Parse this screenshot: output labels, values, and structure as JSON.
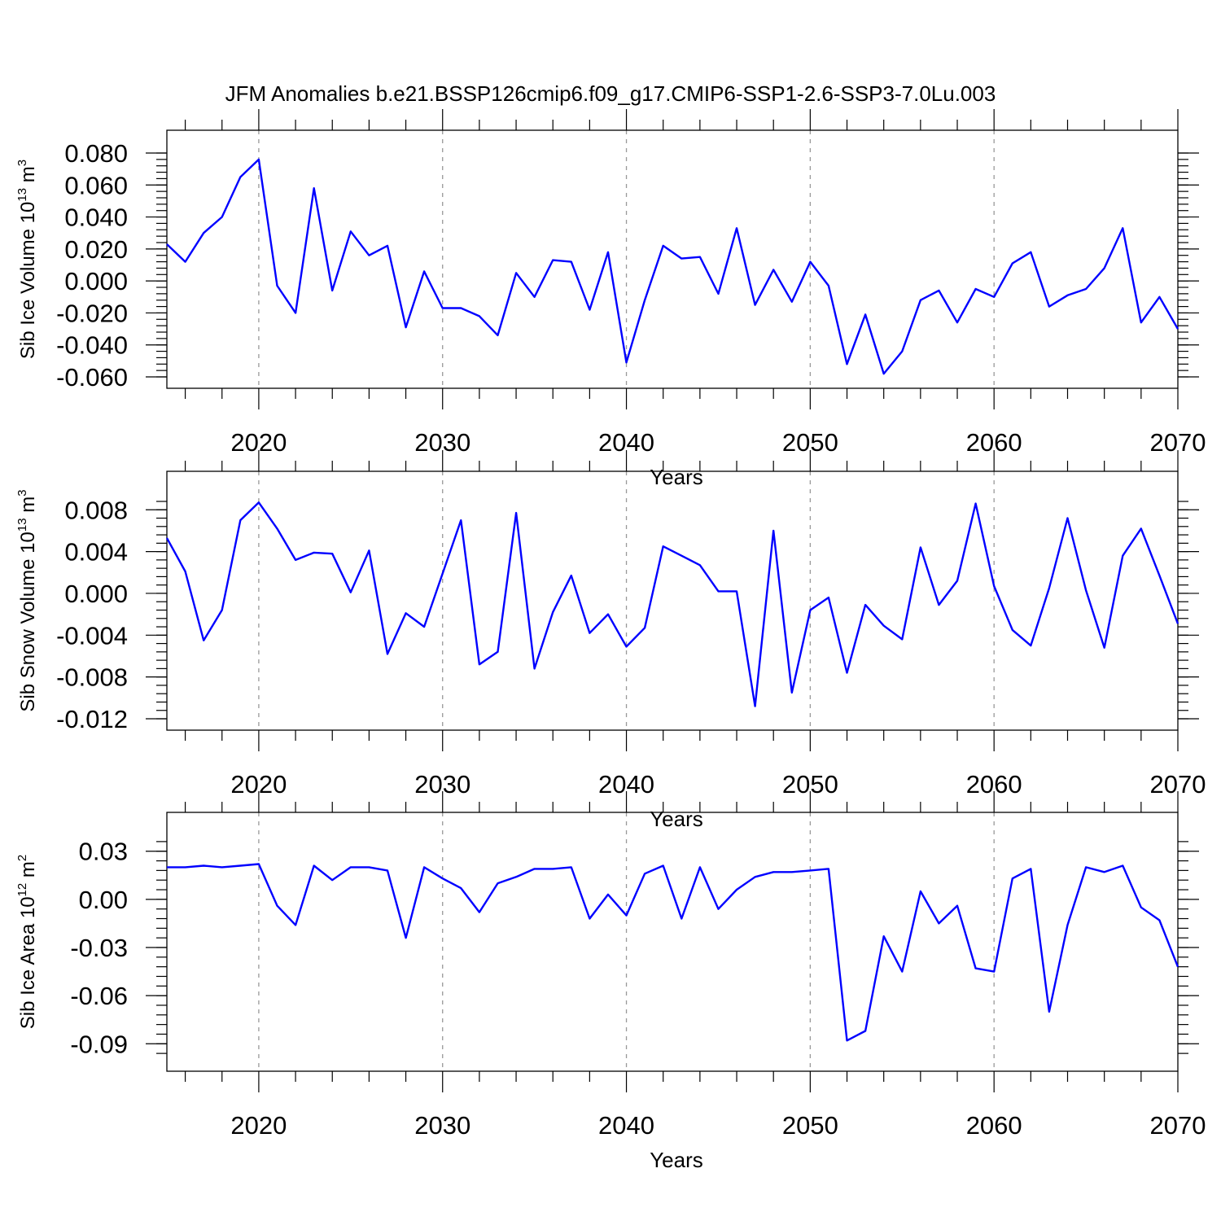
{
  "title": "JFM Anomalies b.e21.BSSP126cmip6.f09_g17.CMIP6-SSP1-2.6-SSP3-7.0Lu.003",
  "colors": {
    "line": "#0000ff",
    "grid": "#999999",
    "axis": "#000000"
  },
  "chart_data": [
    {
      "type": "line",
      "ylabel": {
        "text": "Sib Ice Volume 10",
        "exp": "13",
        "unit": " m",
        "unit_exp": "3"
      },
      "xlabel": "Years",
      "xlim": [
        2015,
        2070
      ],
      "ylim": [
        -0.06,
        0.08
      ],
      "x_ticks": [
        2020,
        2030,
        2040,
        2050,
        2060,
        2070
      ],
      "x_tick_labels": [
        "2020",
        "2030",
        "2040",
        "2050",
        "2060",
        "2070"
      ],
      "y_ticks": [
        0.08,
        0.06,
        0.04,
        0.02,
        0.0,
        -0.02,
        -0.04,
        -0.06
      ],
      "y_tick_labels": [
        "0.080",
        "0.060",
        "0.040",
        "0.020",
        "0.000",
        "-0.020",
        "-0.040",
        "-0.060"
      ],
      "grid": "dashed vertical at decades",
      "x": [
        2015,
        2016,
        2017,
        2018,
        2019,
        2020,
        2021,
        2022,
        2023,
        2024,
        2025,
        2026,
        2027,
        2028,
        2029,
        2030,
        2031,
        2032,
        2033,
        2034,
        2035,
        2036,
        2037,
        2038,
        2039,
        2040,
        2041,
        2042,
        2043,
        2044,
        2045,
        2046,
        2047,
        2048,
        2049,
        2050,
        2051,
        2052,
        2053,
        2054,
        2055,
        2056,
        2057,
        2058,
        2059,
        2060,
        2061,
        2062,
        2063,
        2064,
        2065,
        2066,
        2067,
        2068,
        2069,
        2070
      ],
      "values": [
        0.023,
        0.012,
        0.03,
        0.04,
        0.065,
        0.076,
        -0.003,
        -0.02,
        0.058,
        -0.006,
        0.031,
        0.016,
        0.022,
        -0.029,
        0.006,
        -0.017,
        -0.017,
        -0.022,
        -0.034,
        0.005,
        -0.01,
        0.013,
        0.012,
        -0.018,
        0.018,
        -0.051,
        -0.012,
        0.022,
        0.014,
        0.015,
        -0.008,
        0.033,
        -0.015,
        0.007,
        -0.013,
        0.012,
        -0.003,
        -0.052,
        -0.021,
        -0.058,
        -0.044,
        -0.012,
        -0.006,
        -0.026,
        -0.005,
        -0.01,
        0.011,
        0.018,
        -0.016,
        -0.009,
        -0.005,
        0.008,
        0.033,
        -0.026,
        -0.01,
        -0.03
      ]
    },
    {
      "type": "line",
      "ylabel": {
        "text": "Sib Snow Volume 10",
        "exp": "13",
        "unit": " m",
        "unit_exp": "3"
      },
      "xlabel": "Years",
      "xlim": [
        2015,
        2070
      ],
      "ylim": [
        -0.012,
        0.0095
      ],
      "x_ticks": [
        2020,
        2030,
        2040,
        2050,
        2060,
        2070
      ],
      "x_tick_labels": [
        "2020",
        "2030",
        "2040",
        "2050",
        "2060",
        "2070"
      ],
      "y_ticks": [
        0.008,
        0.004,
        0.0,
        -0.004,
        -0.008,
        -0.012
      ],
      "y_tick_labels": [
        "0.008",
        "0.004",
        "0.000",
        "-0.004",
        "-0.008",
        "-0.012"
      ],
      "grid": "dashed vertical at decades",
      "x": [
        2015,
        2016,
        2017,
        2018,
        2019,
        2020,
        2021,
        2022,
        2023,
        2024,
        2025,
        2026,
        2027,
        2028,
        2029,
        2030,
        2031,
        2032,
        2033,
        2034,
        2035,
        2036,
        2037,
        2038,
        2039,
        2040,
        2041,
        2042,
        2043,
        2044,
        2045,
        2046,
        2047,
        2048,
        2049,
        2050,
        2051,
        2052,
        2053,
        2054,
        2055,
        2056,
        2057,
        2058,
        2059,
        2060,
        2061,
        2062,
        2063,
        2064,
        2065,
        2066,
        2067,
        2068,
        2069,
        2070
      ],
      "values": [
        0.0053,
        0.0021,
        -0.0045,
        -0.0016,
        0.007,
        0.0087,
        0.0062,
        0.0032,
        0.0039,
        0.0038,
        0.0001,
        0.0041,
        -0.0058,
        -0.0019,
        -0.0032,
        0.0019,
        0.007,
        -0.0068,
        -0.0056,
        0.0077,
        -0.0072,
        -0.0018,
        0.0017,
        -0.0038,
        -0.002,
        -0.0051,
        -0.0033,
        0.0045,
        0.0036,
        0.0027,
        0.0002,
        0.0002,
        -0.0108,
        0.006,
        -0.0095,
        -0.0016,
        -0.0004,
        -0.0076,
        -0.0011,
        -0.0031,
        -0.0044,
        0.0044,
        -0.0011,
        0.0012,
        0.0086,
        0.0007,
        -0.0035,
        -0.005,
        0.0005,
        0.0072,
        0.0003,
        -0.0052,
        0.0036,
        0.0062,
        0.0017,
        -0.0029
      ]
    },
    {
      "type": "line",
      "ylabel": {
        "text": "Sib Ice Area 10",
        "exp": "12",
        "unit": " m",
        "unit_exp": "2"
      },
      "xlabel": "Years",
      "xlim": [
        2015,
        2070
      ],
      "ylim": [
        -0.1,
        0.04
      ],
      "x_ticks": [
        2020,
        2030,
        2040,
        2050,
        2060,
        2070
      ],
      "x_tick_labels": [
        "2020",
        "2030",
        "2040",
        "2050",
        "2060",
        "2070"
      ],
      "y_ticks": [
        0.03,
        0.0,
        -0.03,
        -0.06,
        -0.09
      ],
      "y_tick_labels": [
        "0.03",
        "0.00",
        "-0.03",
        "-0.06",
        "-0.09"
      ],
      "grid": "dashed vertical at decades",
      "x": [
        2015,
        2016,
        2017,
        2018,
        2019,
        2020,
        2021,
        2022,
        2023,
        2024,
        2025,
        2026,
        2027,
        2028,
        2029,
        2030,
        2031,
        2032,
        2033,
        2034,
        2035,
        2036,
        2037,
        2038,
        2039,
        2040,
        2041,
        2042,
        2043,
        2044,
        2045,
        2046,
        2047,
        2048,
        2049,
        2050,
        2051,
        2052,
        2053,
        2054,
        2055,
        2056,
        2057,
        2058,
        2059,
        2060,
        2061,
        2062,
        2063,
        2064,
        2065,
        2066,
        2067,
        2068,
        2069,
        2070
      ],
      "values": [
        0.02,
        0.02,
        0.021,
        0.02,
        0.021,
        0.022,
        -0.004,
        -0.016,
        0.021,
        0.012,
        0.02,
        0.02,
        0.018,
        -0.024,
        0.02,
        0.013,
        0.007,
        -0.008,
        0.01,
        0.014,
        0.019,
        0.019,
        0.02,
        -0.012,
        0.003,
        -0.01,
        0.016,
        0.021,
        -0.012,
        0.02,
        -0.006,
        0.006,
        0.014,
        0.017,
        0.017,
        0.018,
        0.019,
        -0.088,
        -0.082,
        -0.023,
        -0.045,
        0.005,
        -0.015,
        -0.004,
        -0.043,
        -0.045,
        0.013,
        0.019,
        -0.07,
        -0.016,
        0.02,
        0.017,
        0.021,
        -0.005,
        -0.013,
        -0.042
      ]
    }
  ]
}
